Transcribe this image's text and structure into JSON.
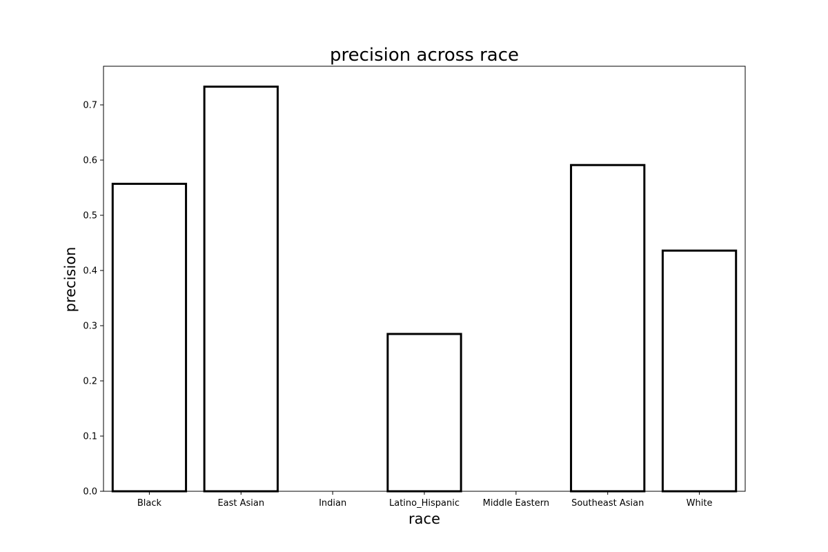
{
  "chart_data": {
    "type": "bar",
    "title": "precision across race",
    "xlabel": "race",
    "ylabel": "precision",
    "categories": [
      "Black",
      "East Asian",
      "Indian",
      "Latino_Hispanic",
      "Middle Eastern",
      "Southeast Asian",
      "White"
    ],
    "values": [
      0.557,
      0.733,
      0.0,
      0.285,
      0.0,
      0.591,
      0.436
    ],
    "ylim": [
      0,
      0.77
    ],
    "yticks": [
      0.0,
      0.1,
      0.2,
      0.3,
      0.4,
      0.5,
      0.6,
      0.7
    ],
    "ytick_labels": [
      "0.0",
      "0.1",
      "0.2",
      "0.3",
      "0.4",
      "0.5",
      "0.6",
      "0.7"
    ],
    "grid": false,
    "legend": "none",
    "bar_fill": "#ffffff",
    "bar_edge": "#000000"
  }
}
